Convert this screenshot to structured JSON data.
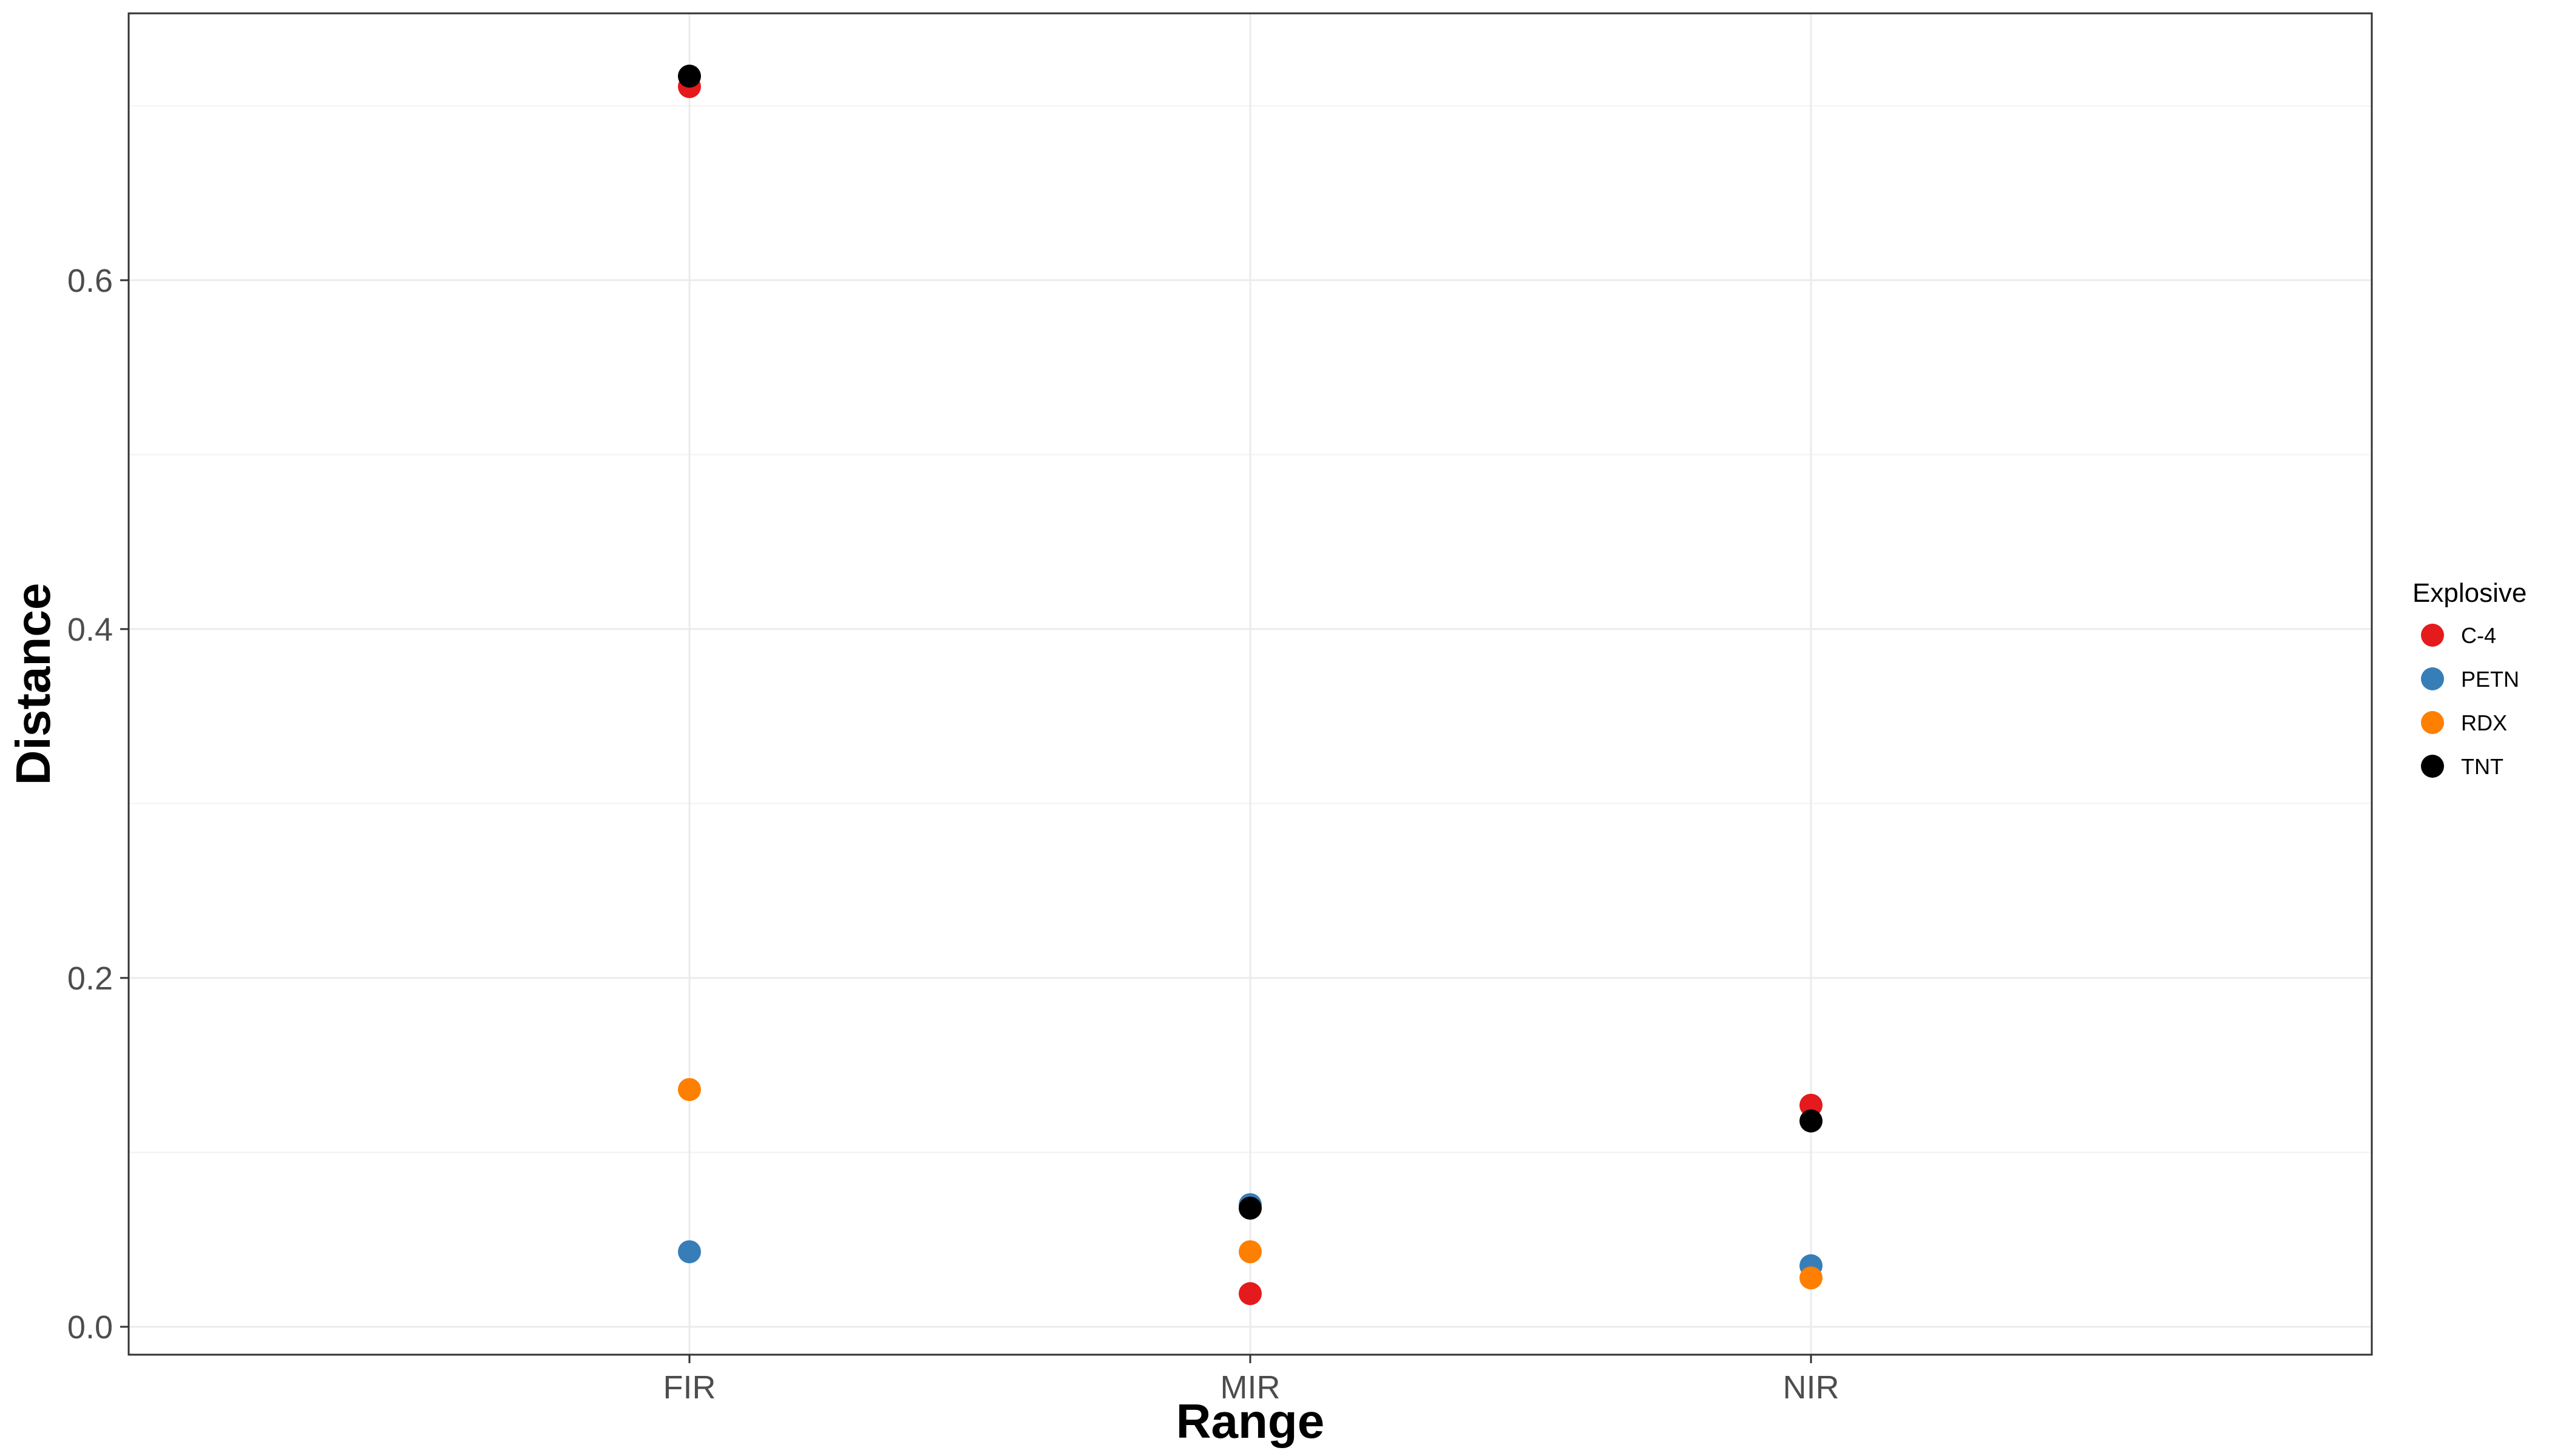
{
  "chart_data": {
    "type": "scatter",
    "title": "",
    "xlabel": "Range",
    "ylabel": "Distance",
    "categories": [
      "FIR",
      "MIR",
      "NIR"
    ],
    "ylim": [
      -0.016,
      0.753
    ],
    "yticks": [
      0.0,
      0.2,
      0.4,
      0.6
    ],
    "ytick_labels": [
      "0.0",
      "0.2",
      "0.4",
      "0.6"
    ],
    "grid": true,
    "legend": {
      "title": "Explosive",
      "placement": "right"
    },
    "series": [
      {
        "name": "C-4",
        "color": "#e41a1c",
        "values": [
          0.711,
          0.019,
          0.127
        ]
      },
      {
        "name": "PETN",
        "color": "#377eb8",
        "values": [
          0.043,
          0.07,
          0.035
        ]
      },
      {
        "name": "RDX",
        "color": "#ff7f00",
        "values": [
          0.136,
          0.043,
          0.028
        ]
      },
      {
        "name": "TNT",
        "color": "#000000",
        "values": [
          0.717,
          0.068,
          0.118
        ]
      }
    ]
  }
}
